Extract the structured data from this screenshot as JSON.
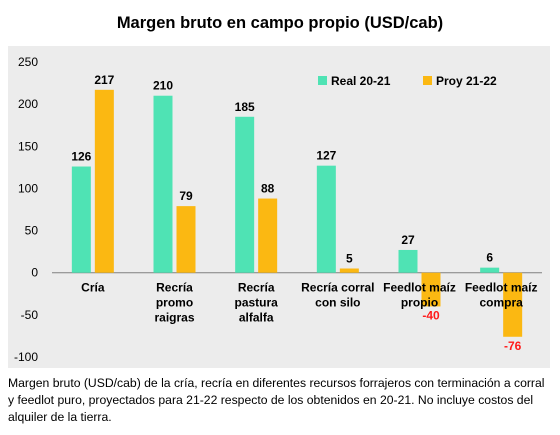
{
  "chart_data": {
    "type": "bar",
    "title": "Margen bruto en campo propio (USD/cab)",
    "categories": [
      [
        "Cría"
      ],
      [
        "Recría",
        "promo",
        "raigras"
      ],
      [
        "Recría",
        "pastura",
        "alfalfa"
      ],
      [
        "Recría corral",
        "con silo"
      ],
      [
        "Feedlot maíz",
        "propio"
      ],
      [
        "Feedlot maíz",
        "compra"
      ]
    ],
    "series": [
      {
        "name": "Real 20-21",
        "color": "#4fe3b4",
        "values": [
          126,
          210,
          185,
          127,
          27,
          6
        ]
      },
      {
        "name": "Proy 21-22",
        "color": "#fbb812",
        "values": [
          217,
          79,
          88,
          5,
          -40,
          -76
        ]
      }
    ],
    "negative_label_color": "#ff1a1a",
    "ylim": [
      -100,
      250
    ],
    "yticks": [
      250,
      200,
      150,
      100,
      50,
      0,
      -50,
      -100
    ],
    "legend_position": "top-right",
    "grid": false,
    "caption": "Margen bruto (USD/cab) de la cría, recría en diferentes recursos forrajeros con terminación a corral y feedlot puro, proyectados para 21-22 respecto de los obtenidos en 20-21. No incluye costos del alquiler de la tierra."
  }
}
